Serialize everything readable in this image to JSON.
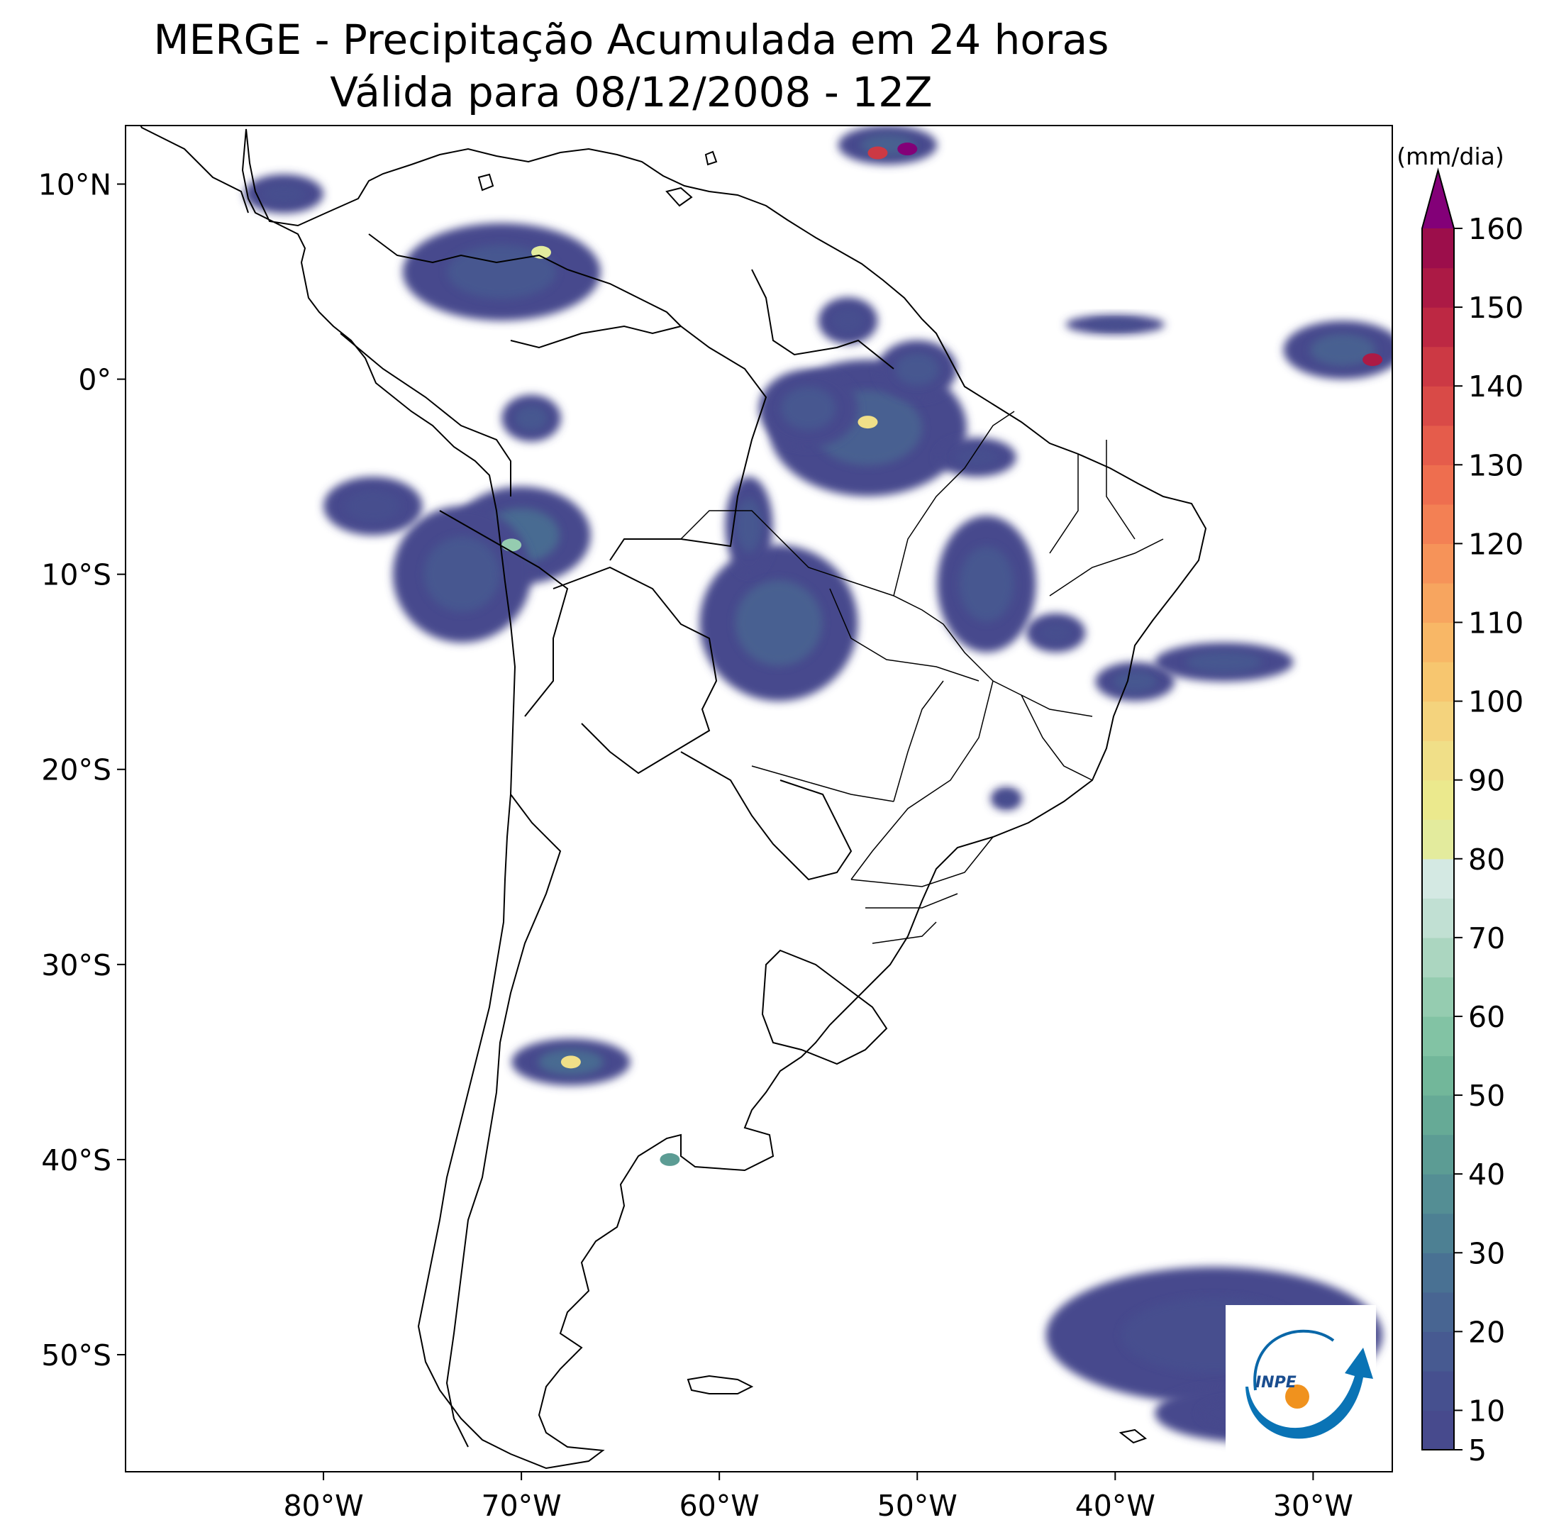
{
  "title": {
    "line1": "MERGE - Precipitação Acumulada em 24 horas",
    "line2": "Válida para 08/12/2008 - 12Z"
  },
  "map": {
    "lon_range": [
      -90,
      -26
    ],
    "lat_range": [
      -56,
      13
    ],
    "lon_ticks": [
      {
        "value": -80,
        "label": "80°W"
      },
      {
        "value": -70,
        "label": "70°W"
      },
      {
        "value": -60,
        "label": "60°W"
      },
      {
        "value": -50,
        "label": "50°W"
      },
      {
        "value": -40,
        "label": "40°W"
      },
      {
        "value": -30,
        "label": "30°W"
      }
    ],
    "lat_ticks": [
      {
        "value": 10,
        "label": "10°N"
      },
      {
        "value": 0,
        "label": "0°"
      },
      {
        "value": -10,
        "label": "10°S"
      },
      {
        "value": -20,
        "label": "20°S"
      },
      {
        "value": -30,
        "label": "30°S"
      },
      {
        "value": -40,
        "label": "40°S"
      },
      {
        "value": -50,
        "label": "50°S"
      }
    ],
    "precip_areas": [
      {
        "name": "amazon-central-north",
        "lon": -52.5,
        "lat": -2.5,
        "rlon": 5,
        "rlat": 3.5,
        "level": 20
      },
      {
        "name": "amazon-north-2",
        "lon": -55.5,
        "lat": -1.5,
        "rlon": 2.5,
        "rlat": 2,
        "level": 15
      },
      {
        "name": "para-coast",
        "lon": -50,
        "lat": 0.5,
        "rlon": 2,
        "rlat": 1.5,
        "level": 15
      },
      {
        "name": "guianas",
        "lon": -53.5,
        "lat": 3,
        "rlon": 1.5,
        "rlat": 1.2,
        "level": 10
      },
      {
        "name": "mato-grosso",
        "lon": -57,
        "lat": -12.5,
        "rlon": 4,
        "rlat": 4,
        "level": 20
      },
      {
        "name": "rondonia-strip",
        "lon": -58.5,
        "lat": -7.5,
        "rlon": 1.2,
        "rlat": 2.5,
        "level": 15
      },
      {
        "name": "peru-acre",
        "lon": -70,
        "lat": -8,
        "rlon": 3.5,
        "rlat": 2.5,
        "level": 25
      },
      {
        "name": "peru-central",
        "lon": -73,
        "lat": -10,
        "rlon": 3.5,
        "rlat": 3.5,
        "level": 15
      },
      {
        "name": "peru-coast",
        "lon": -77.5,
        "lat": -6.5,
        "rlon": 2.5,
        "rlat": 1.5,
        "level": 10
      },
      {
        "name": "colombia-venezuela",
        "lon": -71,
        "lat": 5.5,
        "rlon": 5,
        "rlat": 2.5,
        "level": 15
      },
      {
        "name": "colombia-south",
        "lon": -69.5,
        "lat": -2,
        "rlon": 1.5,
        "rlat": 1.2,
        "level": 15
      },
      {
        "name": "tocantins",
        "lon": -46.5,
        "lat": -10.5,
        "rlon": 2.5,
        "rlat": 3.5,
        "level": 15
      },
      {
        "name": "maranhao",
        "lon": -47,
        "lat": -4,
        "rlon": 2,
        "rlat": 1,
        "level": 10
      },
      {
        "name": "bahia-coast",
        "lon": -39,
        "lat": -15.5,
        "rlon": 2,
        "rlat": 1,
        "level": 15
      },
      {
        "name": "goias-east",
        "lon": -43,
        "lat": -13,
        "rlon": 1.5,
        "rlat": 1,
        "level": 10
      },
      {
        "name": "atlantic-eastward-band",
        "lon": -34.5,
        "lat": -14.5,
        "rlon": 3.5,
        "rlat": 1,
        "level": 15
      },
      {
        "name": "atlantic-itcz-east",
        "lon": -28.5,
        "lat": 1.5,
        "rlon": 3,
        "rlat": 1.5,
        "level": 20
      },
      {
        "name": "atlantic-itcz-west",
        "lon": -40,
        "lat": 2.8,
        "rlon": 2.5,
        "rlat": 0.5,
        "level": 10
      },
      {
        "name": "caribbean-north",
        "lon": -51.5,
        "lat": 12,
        "rlon": 2.5,
        "rlat": 1,
        "level": 20
      },
      {
        "name": "argentina-central",
        "lon": -67.5,
        "lat": -35,
        "rlon": 3,
        "rlat": 1.2,
        "level": 25
      },
      {
        "name": "south-atlantic-cloudband",
        "lon": -35,
        "lat": -49,
        "rlon": 8.5,
        "rlat": 3.5,
        "level": 10
      },
      {
        "name": "south-atlantic-lower",
        "lon": -33,
        "lat": -53,
        "rlon": 5,
        "rlat": 1.5,
        "level": 5
      },
      {
        "name": "panama",
        "lon": -82,
        "lat": 9.5,
        "rlon": 2,
        "rlat": 1,
        "level": 10
      },
      {
        "name": "minas-south",
        "lon": -45.5,
        "lat": -21.5,
        "rlon": 0.8,
        "rlat": 0.6,
        "level": 10
      }
    ],
    "intense_spots": [
      {
        "lon": -50.5,
        "lat": 11.8,
        "level": 160
      },
      {
        "lon": -52,
        "lat": 11.6,
        "level": 140
      },
      {
        "lon": -27,
        "lat": 1,
        "level": 150
      },
      {
        "lon": -69,
        "lat": 6.5,
        "level": 80
      },
      {
        "lon": -67.5,
        "lat": -35,
        "level": 90
      },
      {
        "lon": -52.5,
        "lat": -2.2,
        "level": 90
      },
      {
        "lon": -70.5,
        "lat": -8.5,
        "level": 60
      },
      {
        "lon": -62.5,
        "lat": -40,
        "level": 40
      }
    ]
  },
  "colorbar": {
    "unit": "(mm/dia)",
    "boundaries": [
      5,
      10,
      15,
      20,
      25,
      30,
      35,
      40,
      45,
      50,
      55,
      60,
      65,
      70,
      75,
      80,
      85,
      90,
      95,
      100,
      105,
      110,
      115,
      120,
      125,
      130,
      135,
      140,
      145,
      150,
      155,
      160
    ],
    "colors": [
      "#474a8d",
      "#46508f",
      "#475a91",
      "#486592",
      "#497193",
      "#4d8093",
      "#548e94",
      "#5c9c94",
      "#66aa96",
      "#72b79a",
      "#82c3a4",
      "#95ccb0",
      "#abd6c0",
      "#c1e0d3",
      "#d4e9e3",
      "#e3eb9d",
      "#ebe98d",
      "#f0df88",
      "#f4d37d",
      "#f7c66f",
      "#f8b766",
      "#f7a55f",
      "#f69359",
      "#f38054",
      "#ee6e4f",
      "#e55c4b",
      "#d94a47",
      "#cc3944",
      "#bd2843",
      "#ac1a45",
      "#9c0e4b"
    ],
    "extend_color": "#830078",
    "tick_values": [
      5,
      10,
      20,
      30,
      40,
      50,
      60,
      70,
      80,
      90,
      100,
      110,
      120,
      130,
      140,
      150,
      160
    ],
    "tick_labels": [
      "5",
      "10",
      "20",
      "30",
      "40",
      "50",
      "60",
      "70",
      "80",
      "90",
      "100",
      "110",
      "120",
      "130",
      "140",
      "150",
      "160"
    ]
  },
  "logo": {
    "text": "INPE"
  }
}
